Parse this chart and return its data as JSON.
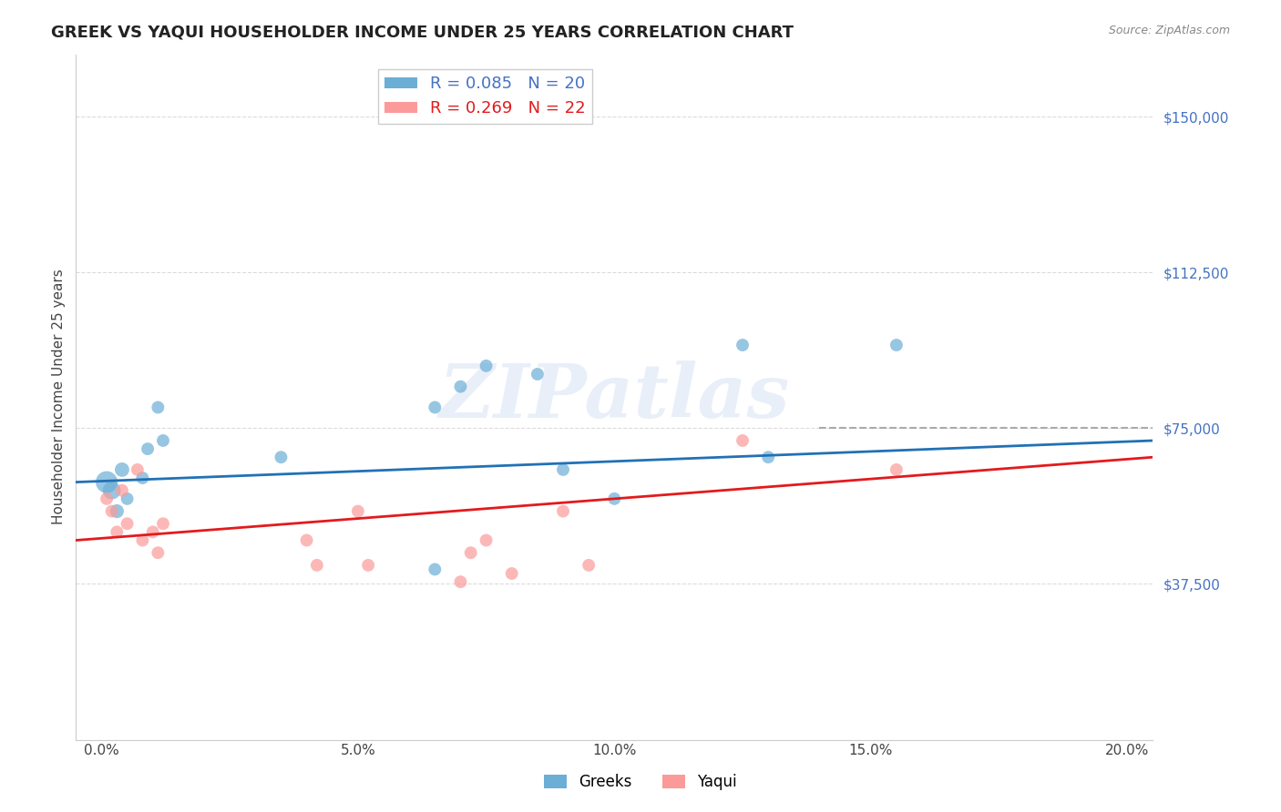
{
  "title": "GREEK VS YAQUI HOUSEHOLDER INCOME UNDER 25 YEARS CORRELATION CHART",
  "source": "Source: ZipAtlas.com",
  "ylabel": "Householder Income Under 25 years",
  "xlabel_ticks": [
    "0.0%",
    "5.0%",
    "10.0%",
    "15.0%",
    "20.0%"
  ],
  "xlabel_vals": [
    0.0,
    0.05,
    0.1,
    0.15,
    0.2
  ],
  "ytick_labels": [
    "$37,500",
    "$75,000",
    "$112,500",
    "$150,000"
  ],
  "ytick_vals": [
    37500,
    75000,
    112500,
    150000
  ],
  "ylim": [
    0,
    165000
  ],
  "xlim": [
    -0.005,
    0.205
  ],
  "watermark": "ZIPatlas",
  "legend_greek_R": "0.085",
  "legend_greek_N": "20",
  "legend_yaqui_R": "0.269",
  "legend_yaqui_N": "22",
  "greek_color": "#6baed6",
  "greek_line_color": "#2171b5",
  "yaqui_color": "#fb9a99",
  "yaqui_line_color": "#e31a1c",
  "greek_scatter": {
    "x": [
      0.001,
      0.002,
      0.003,
      0.004,
      0.005,
      0.008,
      0.009,
      0.011,
      0.012,
      0.035,
      0.065,
      0.07,
      0.075,
      0.085,
      0.09,
      0.1,
      0.125,
      0.13,
      0.155,
      0.065
    ],
    "y": [
      62000,
      60000,
      55000,
      65000,
      58000,
      63000,
      70000,
      80000,
      72000,
      68000,
      80000,
      85000,
      90000,
      88000,
      65000,
      58000,
      95000,
      68000,
      95000,
      41000
    ],
    "sizes": [
      300,
      200,
      120,
      130,
      100,
      100,
      100,
      100,
      100,
      100,
      100,
      100,
      100,
      100,
      100,
      100,
      100,
      100,
      100,
      100
    ]
  },
  "yaqui_scatter": {
    "x": [
      0.001,
      0.002,
      0.003,
      0.004,
      0.005,
      0.007,
      0.008,
      0.01,
      0.011,
      0.012,
      0.04,
      0.042,
      0.05,
      0.052,
      0.07,
      0.072,
      0.075,
      0.08,
      0.09,
      0.095,
      0.125,
      0.155
    ],
    "y": [
      58000,
      55000,
      50000,
      60000,
      52000,
      65000,
      48000,
      50000,
      45000,
      52000,
      48000,
      42000,
      55000,
      42000,
      38000,
      45000,
      48000,
      40000,
      55000,
      42000,
      72000,
      65000
    ],
    "sizes": [
      100,
      100,
      100,
      100,
      100,
      100,
      100,
      100,
      100,
      100,
      100,
      100,
      100,
      100,
      100,
      100,
      100,
      100,
      100,
      100,
      100,
      100
    ]
  },
  "greek_line": {
    "x0": -0.005,
    "x1": 0.205,
    "y0": 62000,
    "y1": 72000
  },
  "yaqui_line": {
    "x0": -0.005,
    "x1": 0.205,
    "y0": 48000,
    "y1": 68000
  },
  "dashed_line": {
    "x0": 0.14,
    "x1": 0.205,
    "y": 75000
  },
  "background_color": "#ffffff",
  "grid_color": "#cccccc"
}
